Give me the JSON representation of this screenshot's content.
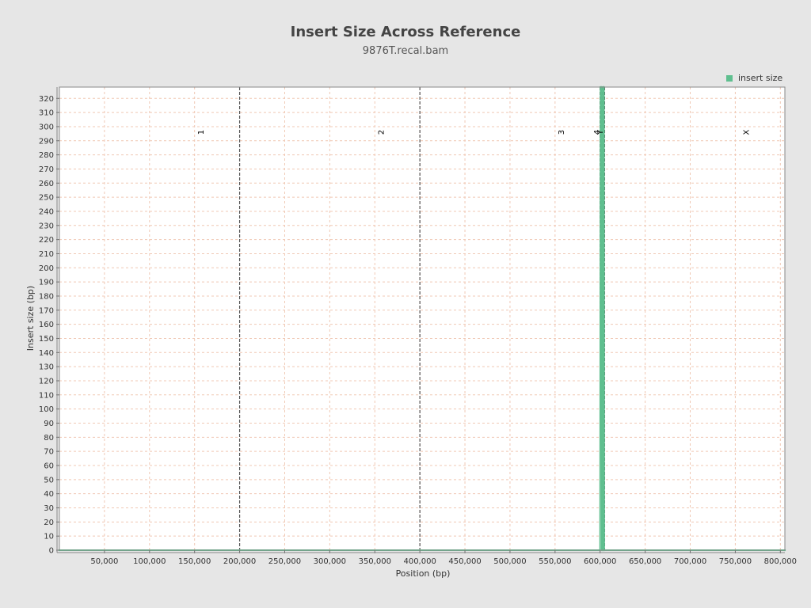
{
  "chart_data": {
    "type": "line",
    "title": "Insert Size Across Reference",
    "subtitle": "9876T.recal.bam",
    "xlabel": "Position (bp)",
    "ylabel": "Insert size (bp)",
    "xlim": [
      0,
      805000
    ],
    "ylim": [
      0,
      328
    ],
    "x_ticks": [
      50000,
      100000,
      150000,
      200000,
      250000,
      300000,
      350000,
      400000,
      450000,
      500000,
      550000,
      600000,
      650000,
      700000,
      750000,
      800000
    ],
    "x_tick_labels": [
      "50,000",
      "100,000",
      "150,000",
      "200,000",
      "250,000",
      "300,000",
      "350,000",
      "400,000",
      "450,000",
      "500,000",
      "550,000",
      "600,000",
      "650,000",
      "700,000",
      "750,000",
      "800,000"
    ],
    "y_ticks": [
      0,
      10,
      20,
      30,
      40,
      50,
      60,
      70,
      80,
      90,
      100,
      110,
      120,
      130,
      140,
      150,
      160,
      170,
      180,
      190,
      200,
      210,
      220,
      230,
      240,
      250,
      260,
      270,
      280,
      290,
      300,
      310,
      320
    ],
    "grid": true,
    "legend": {
      "position": "top-right",
      "entries": [
        "insert size"
      ]
    },
    "series": [
      {
        "name": "insert size",
        "color": "#5fbf8f",
        "points": [
          [
            0,
            0
          ],
          [
            200000,
            0
          ],
          [
            400000,
            0
          ],
          [
            600000,
            0
          ],
          [
            600500,
            328
          ],
          [
            601500,
            328
          ],
          [
            602000,
            0
          ],
          [
            603000,
            0
          ],
          [
            603300,
            328
          ],
          [
            604200,
            328
          ],
          [
            604500,
            0
          ],
          [
            805000,
            0
          ]
        ]
      }
    ],
    "contig_boundaries": [
      200000,
      400000,
      600000,
      602500,
      605000
    ],
    "contigs": [
      {
        "name": "1",
        "x": 160000
      },
      {
        "name": "2",
        "x": 360000
      },
      {
        "name": "3",
        "x": 560000
      },
      {
        "name": "4",
        "x": 599500
      },
      {
        "name": "Y",
        "x": 603000
      },
      {
        "name": "X",
        "x": 765000
      }
    ]
  }
}
